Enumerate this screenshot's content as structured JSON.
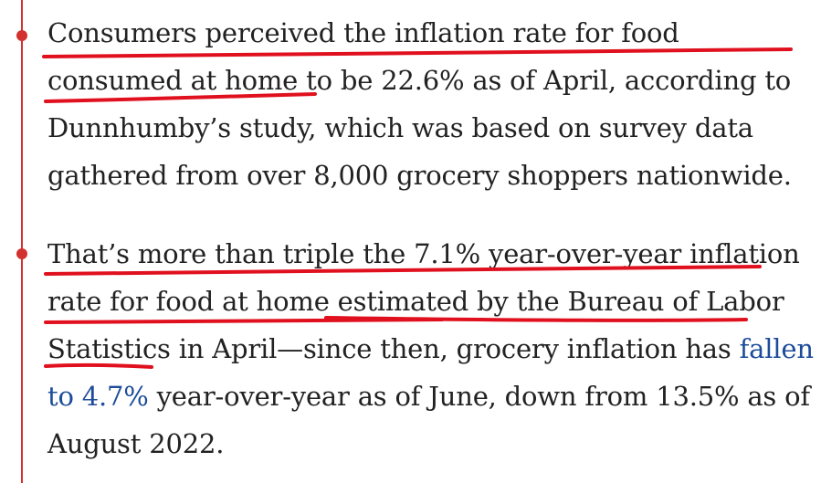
{
  "bullets": [
    {
      "text": "Consumers perceived the inflation rate for food consumed at home to be 22.6% as of April, according to Dunnhumby’s study, which was based on survey data gathered from over 8,000 grocery shoppers nationwide."
    },
    {
      "text_before_link": "That’s more than triple the 7.1% year-over-year inflation rate for food at home estimated by the Bureau of Labor Statistics in April—since then, grocery inflation has ",
      "link_text": "fallen to 4.7%",
      "text_after_link": " year-over-year as of June, down from 13.5% as of August 2022."
    }
  ],
  "colors": {
    "accent_red": "#d2312f",
    "underline_red": "#e0101e",
    "link_blue": "#1d4d9a",
    "text": "#222222"
  }
}
